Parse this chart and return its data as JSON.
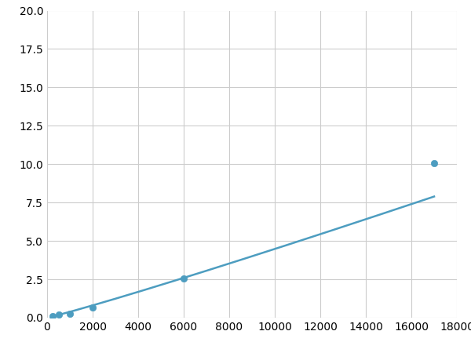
{
  "x_points": [
    250,
    500,
    1000,
    2000,
    6000,
    17000
  ],
  "y_points": [
    0.12,
    0.2,
    0.25,
    0.65,
    2.55,
    10.05
  ],
  "line_color": "#4d9dc0",
  "marker_color": "#4d9dc0",
  "marker_size": 6,
  "xlim": [
    0,
    18000
  ],
  "ylim": [
    0,
    20.0
  ],
  "xticks": [
    0,
    2000,
    4000,
    6000,
    8000,
    10000,
    12000,
    14000,
    16000,
    18000
  ],
  "yticks": [
    0.0,
    2.5,
    5.0,
    7.5,
    10.0,
    12.5,
    15.0,
    17.5,
    20.0
  ],
  "grid_color": "#cccccc",
  "background_color": "#ffffff",
  "tick_fontsize": 10,
  "line_width": 1.8
}
